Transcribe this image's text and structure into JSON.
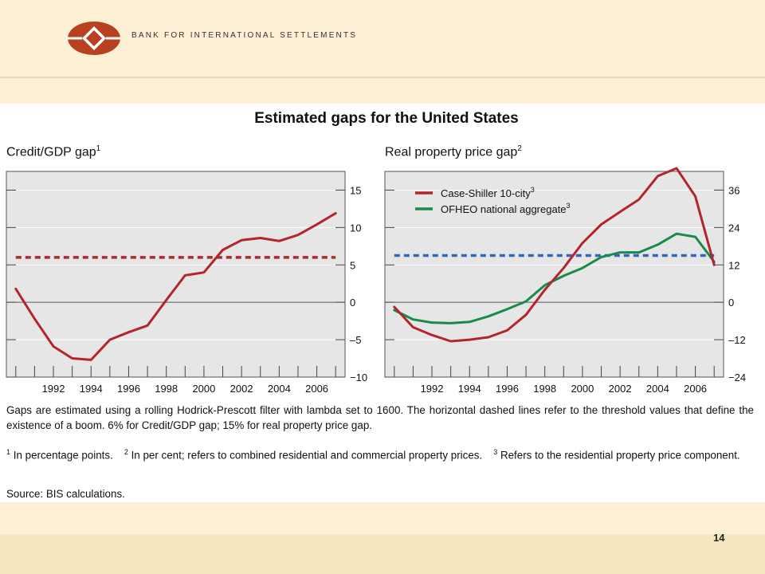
{
  "header": {
    "bank_name": "BANK FOR INTERNATIONAL SETTLEMENTS"
  },
  "title": "Estimated gaps for the United States",
  "panels": [
    {
      "title": "Credit/GDP gap",
      "sup": "1"
    },
    {
      "title": "Real property price gap",
      "sup": "2"
    }
  ],
  "chart_data": [
    {
      "type": "line",
      "title": "Credit/GDP gap",
      "x": [
        1990,
        1991,
        1992,
        1993,
        1994,
        1995,
        1996,
        1997,
        1998,
        1999,
        2000,
        2001,
        2002,
        2003,
        2004,
        2005,
        2006,
        2007
      ],
      "series": [
        {
          "values": [
            1.8,
            -2.2,
            -5.9,
            -7.5,
            -7.7,
            -5.0,
            -4.0,
            -3.1,
            0.3,
            3.6,
            4.0,
            7.0,
            8.3,
            8.6,
            8.2,
            9.0,
            10.4,
            11.9
          ],
          "color": "#b3252e"
        }
      ],
      "threshold": {
        "value": 6,
        "color": "#b3252e",
        "style": "dashed"
      },
      "xticklabels": [
        "1992",
        "1994",
        "1996",
        "1998",
        "2000",
        "2002",
        "2004",
        "2006"
      ],
      "yticks": [
        -10,
        -5,
        0,
        5,
        10,
        15
      ],
      "yticklabels": [
        "−10",
        "–5",
        "0",
        "5",
        "10",
        "15"
      ],
      "ylim": [
        -10,
        17.5
      ],
      "xlim": [
        1989.5,
        2007.5
      ],
      "grid": true
    },
    {
      "type": "line",
      "title": "Real property price gap",
      "x": [
        1990,
        1991,
        1992,
        1993,
        1994,
        1995,
        1996,
        1997,
        1998,
        1999,
        2000,
        2001,
        2002,
        2003,
        2004,
        2005,
        2006,
        2007
      ],
      "series": [
        {
          "name": "Case-Shiller 10-city",
          "sup": "3",
          "color": "#b3252e",
          "values": [
            -1.5,
            -8,
            -10.5,
            -12.5,
            -12,
            -11.2,
            -9,
            -4,
            4,
            11,
            19,
            25,
            29,
            33,
            40.5,
            43,
            34,
            12
          ]
        },
        {
          "name": "OFHEO national aggregate",
          "sup": "3",
          "color": "#1a8a4a",
          "values": [
            -2.5,
            -5.5,
            -6.5,
            -6.7,
            -6.3,
            -4.5,
            -2.2,
            0.3,
            5.5,
            8.5,
            11,
            14.5,
            16,
            16,
            18.5,
            22,
            21,
            13
          ]
        }
      ],
      "threshold": {
        "value": 15,
        "color": "#3366bb",
        "style": "dashed"
      },
      "xticklabels": [
        "1992",
        "1994",
        "1996",
        "1998",
        "2000",
        "2002",
        "2004",
        "2006"
      ],
      "yticks": [
        -24,
        -12,
        0,
        12,
        24,
        36
      ],
      "yticklabels": [
        "−24",
        "–12",
        "0",
        "12",
        "24",
        "36"
      ],
      "ylim": [
        -24,
        42
      ],
      "xlim": [
        1989.5,
        2007.5
      ],
      "grid": true
    }
  ],
  "notes": {
    "main": "Gaps are estimated using a rolling Hodrick-Prescott filter with lambda set to 1600. The horizontal dashed lines refer to the threshold values that define the existence of a boom. 6% for Credit/GDP gap; 15% for real property price gap.",
    "fn1_num": "1",
    "fn1": "In percentage points.",
    "fn2_num": "2",
    "fn2": "In per cent; refers to combined residential and commercial property prices.",
    "fn3_num": "3",
    "fn3": "Refers to the residential property price component.",
    "source": "Source: BIS calculations."
  },
  "page_number": "14"
}
